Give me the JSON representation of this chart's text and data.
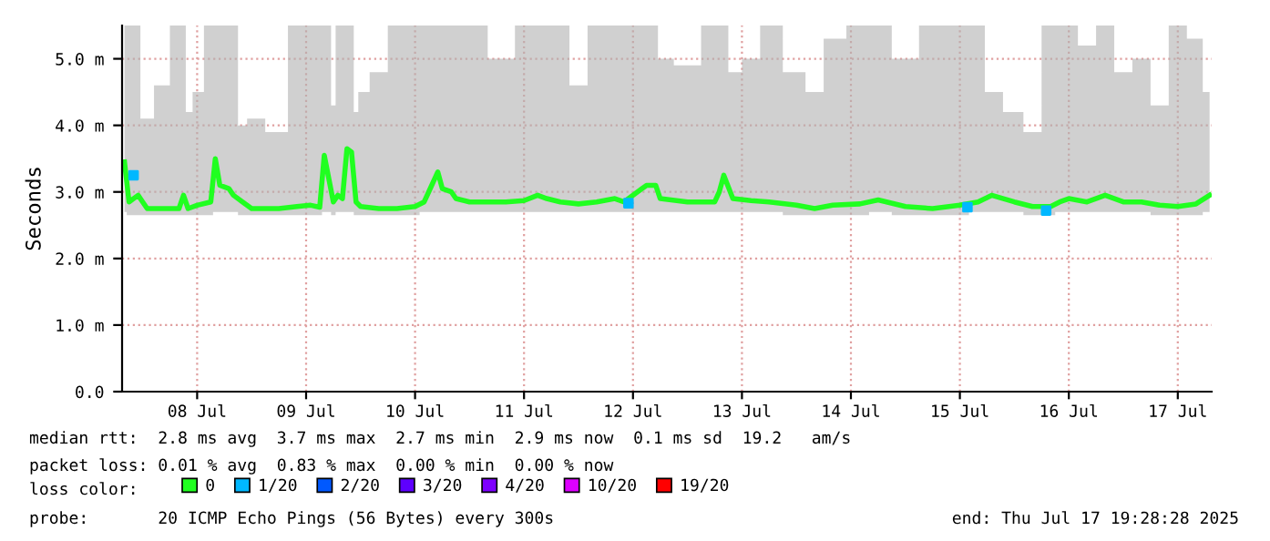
{
  "chart_data": {
    "type": "line",
    "ylabel": "Seconds",
    "xlim": [
      "2025-07-07T19:28",
      "2025-07-17T19:28"
    ],
    "xticks": [
      {
        "value": "2025-07-08T12:00",
        "label": "08 Jul"
      },
      {
        "value": "2025-07-09T12:00",
        "label": "09 Jul"
      },
      {
        "value": "2025-07-10T12:00",
        "label": "10 Jul"
      },
      {
        "value": "2025-07-11T12:00",
        "label": "11 Jul"
      },
      {
        "value": "2025-07-12T12:00",
        "label": "12 Jul"
      },
      {
        "value": "2025-07-13T12:00",
        "label": "13 Jul"
      },
      {
        "value": "2025-07-14T12:00",
        "label": "14 Jul"
      },
      {
        "value": "2025-07-15T12:00",
        "label": "15 Jul"
      },
      {
        "value": "2025-07-16T12:00",
        "label": "16 Jul"
      },
      {
        "value": "2025-07-17T12:00",
        "label": "17 Jul"
      }
    ],
    "ylim": [
      0,
      5.5
    ],
    "yticks": [
      {
        "value": 0,
        "label": "0.0"
      },
      {
        "value": 1,
        "label": "1.0 m"
      },
      {
        "value": 2,
        "label": "2.0 m"
      },
      {
        "value": 3,
        "label": "3.0 m"
      },
      {
        "value": 4,
        "label": "4.0 m"
      },
      {
        "value": 5,
        "label": "5.0 m"
      }
    ],
    "grid": true,
    "legend": "bottom",
    "series": [
      {
        "name": "0",
        "color": "#20ff20",
        "x": [
          "2025-07-07T20:00",
          "2025-07-07T21:00",
          "2025-07-07T23:00",
          "2025-07-08T00:00",
          "2025-07-08T01:00",
          "2025-07-08T04:00",
          "2025-07-08T08:00",
          "2025-07-08T09:00",
          "2025-07-08T10:00",
          "2025-07-08T12:00",
          "2025-07-08T15:00",
          "2025-07-08T16:00",
          "2025-07-08T17:00",
          "2025-07-08T19:00",
          "2025-07-08T20:00",
          "2025-07-08T22:00",
          "2025-07-09T00:00",
          "2025-07-09T06:00",
          "2025-07-09T10:00",
          "2025-07-09T13:00",
          "2025-07-09T15:00",
          "2025-07-09T16:00",
          "2025-07-09T17:00",
          "2025-07-09T18:00",
          "2025-07-09T19:00",
          "2025-07-09T20:00",
          "2025-07-09T21:00",
          "2025-07-09T22:00",
          "2025-07-09T23:00",
          "2025-07-10T00:00",
          "2025-07-10T04:00",
          "2025-07-10T08:00",
          "2025-07-10T12:00",
          "2025-07-10T14:00",
          "2025-07-10T15:00",
          "2025-07-10T17:00",
          "2025-07-10T18:00",
          "2025-07-10T20:00",
          "2025-07-10T21:00",
          "2025-07-11T00:00",
          "2025-07-11T08:00",
          "2025-07-11T12:00",
          "2025-07-11T15:00",
          "2025-07-11T17:00",
          "2025-07-11T20:00",
          "2025-07-12T00:00",
          "2025-07-12T04:00",
          "2025-07-12T08:00",
          "2025-07-12T10:00",
          "2025-07-12T14:00",
          "2025-07-12T15:00",
          "2025-07-12T17:00",
          "2025-07-12T18:00",
          "2025-07-13T00:00",
          "2025-07-13T06:00",
          "2025-07-13T07:00",
          "2025-07-13T08:00",
          "2025-07-13T10:00",
          "2025-07-13T14:00",
          "2025-07-13T18:00",
          "2025-07-14T00:00",
          "2025-07-14T04:00",
          "2025-07-14T08:00",
          "2025-07-14T14:00",
          "2025-07-14T18:00",
          "2025-07-15T00:00",
          "2025-07-15T06:00",
          "2025-07-15T12:00",
          "2025-07-15T16:00",
          "2025-07-15T19:00",
          "2025-07-16T00:00",
          "2025-07-16T04:00",
          "2025-07-16T08:00",
          "2025-07-16T10:00",
          "2025-07-16T12:00",
          "2025-07-16T16:00",
          "2025-07-16T20:00",
          "2025-07-17T00:00",
          "2025-07-17T04:00",
          "2025-07-17T08:00",
          "2025-07-17T12:00",
          "2025-07-17T16:00",
          "2025-07-17T19:00"
        ],
        "values": [
          3.45,
          2.85,
          2.95,
          2.85,
          2.75,
          2.75,
          2.75,
          2.95,
          2.75,
          2.8,
          2.85,
          3.5,
          3.1,
          3.05,
          2.95,
          2.85,
          2.75,
          2.75,
          2.78,
          2.8,
          2.77,
          3.55,
          3.2,
          2.85,
          2.95,
          2.9,
          3.65,
          3.6,
          2.85,
          2.78,
          2.75,
          2.75,
          2.78,
          2.85,
          3.0,
          3.3,
          3.05,
          3.0,
          2.9,
          2.85,
          2.85,
          2.87,
          2.95,
          2.9,
          2.85,
          2.82,
          2.85,
          2.9,
          2.85,
          3.05,
          3.1,
          3.1,
          2.9,
          2.85,
          2.85,
          3.0,
          3.25,
          2.9,
          2.87,
          2.85,
          2.8,
          2.75,
          2.8,
          2.82,
          2.88,
          2.78,
          2.75,
          2.8,
          2.85,
          2.95,
          2.85,
          2.78,
          2.78,
          2.85,
          2.9,
          2.85,
          2.95,
          2.85,
          2.85,
          2.8,
          2.78,
          2.82,
          2.95
        ],
        "lower": [
          2.7,
          2.65,
          2.65,
          2.65,
          2.65,
          2.65,
          2.65,
          2.65,
          2.65,
          2.65,
          2.65,
          2.7,
          2.7,
          2.7,
          2.7,
          2.65,
          2.65,
          2.65,
          2.65,
          2.65,
          2.65,
          2.7,
          2.7,
          2.65,
          2.7,
          2.7,
          2.7,
          2.7,
          2.65,
          2.65,
          2.65,
          2.65,
          2.65,
          2.7,
          2.7,
          2.7,
          2.7,
          2.7,
          2.7,
          2.7,
          2.7,
          2.7,
          2.7,
          2.7,
          2.7,
          2.7,
          2.7,
          2.7,
          2.7,
          2.7,
          2.7,
          2.7,
          2.7,
          2.7,
          2.7,
          2.7,
          2.7,
          2.7,
          2.7,
          2.7,
          2.65,
          2.65,
          2.65,
          2.65,
          2.7,
          2.65,
          2.65,
          2.65,
          2.7,
          2.7,
          2.7,
          2.65,
          2.65,
          2.7,
          2.7,
          2.7,
          2.7,
          2.7,
          2.7,
          2.65,
          2.65,
          2.65,
          2.7
        ],
        "upper": [
          5.5,
          5.5,
          5.5,
          4.1,
          4.1,
          4.6,
          5.5,
          5.5,
          4.2,
          4.5,
          5.5,
          5.5,
          5.5,
          5.5,
          5.5,
          4.0,
          4.1,
          3.9,
          5.5,
          5.5,
          5.5,
          5.5,
          5.5,
          4.3,
          5.5,
          5.5,
          5.5,
          5.5,
          4.2,
          4.5,
          4.8,
          5.5,
          5.5,
          5.5,
          5.5,
          5.5,
          5.5,
          5.5,
          5.5,
          5.5,
          5.0,
          5.5,
          5.5,
          5.5,
          5.5,
          4.6,
          5.5,
          5.5,
          5.5,
          5.5,
          5.5,
          5.5,
          5.0,
          4.9,
          5.5,
          5.5,
          5.5,
          4.8,
          5.0,
          5.5,
          4.8,
          4.5,
          5.3,
          5.5,
          5.5,
          5.0,
          5.5,
          5.5,
          5.5,
          4.5,
          4.2,
          3.9,
          5.5,
          5.5,
          5.5,
          5.2,
          5.5,
          4.8,
          5.0,
          4.3,
          5.5,
          5.3,
          4.5
        ]
      },
      {
        "name": "1/20",
        "color": "#00b8ff",
        "type": "scatter",
        "x": [
          "2025-07-07T22:00",
          "2025-07-12T11:00",
          "2025-07-15T13:40",
          "2025-07-16T07:00"
        ],
        "values": [
          3.25,
          2.83,
          2.77,
          2.72
        ]
      },
      {
        "name": "2/20",
        "color": "#0059ff",
        "type": "scatter"
      },
      {
        "name": "3/20",
        "color": "#5e00ff",
        "type": "scatter"
      },
      {
        "name": "4/20",
        "color": "#7e00ff",
        "type": "scatter"
      },
      {
        "name": "10/20",
        "color": "#dd00ff",
        "type": "scatter"
      },
      {
        "name": "19/20",
        "color": "#ff0000",
        "type": "scatter"
      }
    ],
    "annotations": [
      "median rtt:  2.8 ms avg  3.7 ms max  2.7 ms min  2.9 ms now  0.1 ms sd  19.2   am/s",
      "packet loss: 0.01 % avg  0.83 % max  0.00 % min  0.00 % now",
      "loss color:",
      "probe:       20 ICMP Echo Pings (56 Bytes) every 300s",
      "end: Thu Jul 17 19:28:28 2025"
    ]
  }
}
